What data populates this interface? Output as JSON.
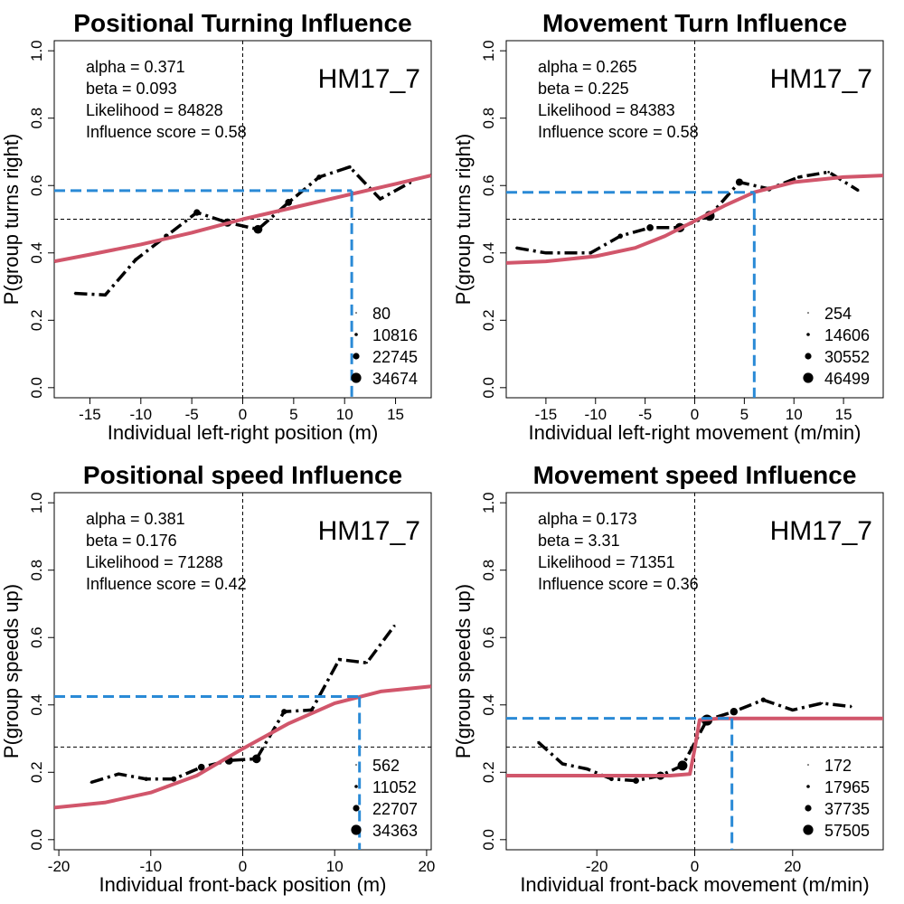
{
  "chart_data": [
    {
      "type": "line",
      "title": "Positional Turning Influence",
      "xlabel": "Individual left-right position (m)",
      "ylabel": "P(group turns right)",
      "xlim": [
        -18.5,
        18.5
      ],
      "ylim": [
        -0.03,
        1.03
      ],
      "xticks": [
        -15,
        -10,
        -5,
        0,
        5,
        10,
        15
      ],
      "yticks": [
        0.0,
        0.2,
        0.4,
        0.6,
        0.8,
        1.0
      ],
      "sample_id": "HM17_7",
      "stats": [
        "alpha = 0.371",
        "beta = 0.093",
        "Likelihood = 84828",
        "Influence score =  0.58"
      ],
      "reference_line": {
        "x": 0,
        "y": 0.5
      },
      "influence_marker": {
        "x": 10.7,
        "y": 0.585
      },
      "size_legend": [
        "80",
        "10816",
        "22745",
        "34674"
      ],
      "observed": {
        "name": "observed",
        "x": [
          -16.5,
          -13.5,
          -10.5,
          -7.5,
          -4.5,
          -1.5,
          1.5,
          4.5,
          7.5,
          10.5,
          13.5,
          16.5
        ],
        "y": [
          0.28,
          0.275,
          0.38,
          0.45,
          0.52,
          0.49,
          0.47,
          0.55,
          0.625,
          0.655,
          0.56,
          0.61
        ],
        "counts": [
          80,
          500,
          3000,
          9000,
          18000,
          30000,
          34674,
          20000,
          9000,
          3000,
          600,
          100
        ]
      },
      "fitted": {
        "name": "fitted",
        "x": [
          -18.5,
          -15,
          -10,
          -5,
          0,
          5,
          10,
          15,
          18.5
        ],
        "y": [
          0.375,
          0.395,
          0.425,
          0.46,
          0.5,
          0.535,
          0.57,
          0.605,
          0.63
        ]
      }
    },
    {
      "type": "line",
      "title": "Movement Turn Influence",
      "xlabel": "Individual left-right movement (m/min)",
      "ylabel": "P(group turns right)",
      "xlim": [
        -19,
        19
      ],
      "ylim": [
        -0.03,
        1.03
      ],
      "xticks": [
        -15,
        -10,
        -5,
        0,
        5,
        10,
        15
      ],
      "yticks": [
        0.0,
        0.2,
        0.4,
        0.6,
        0.8,
        1.0
      ],
      "sample_id": "HM17_7",
      "stats": [
        "alpha = 0.265",
        "beta = 0.225",
        "Likelihood = 84383",
        "Influence score =  0.58"
      ],
      "reference_line": {
        "x": 0,
        "y": 0.5
      },
      "influence_marker": {
        "x": 6,
        "y": 0.58
      },
      "size_legend": [
        "254",
        "14606",
        "30552",
        "46499"
      ],
      "observed": {
        "name": "observed",
        "x": [
          -18,
          -15,
          -10.5,
          -7.5,
          -4.5,
          -1.5,
          1.5,
          4.5,
          7.5,
          10.5,
          13.5,
          16.5
        ],
        "y": [
          0.415,
          0.4,
          0.4,
          0.45,
          0.475,
          0.475,
          0.51,
          0.61,
          0.59,
          0.625,
          0.64,
          0.585
        ],
        "counts": [
          254,
          800,
          3000,
          9000,
          20000,
          40000,
          46499,
          22000,
          9000,
          3000,
          900,
          300
        ]
      },
      "fitted": {
        "name": "fitted",
        "x": [
          -19,
          -15,
          -10,
          -6,
          -3,
          0,
          3,
          6,
          10,
          15,
          19
        ],
        "y": [
          0.37,
          0.375,
          0.39,
          0.415,
          0.45,
          0.495,
          0.54,
          0.58,
          0.61,
          0.625,
          0.63
        ]
      }
    },
    {
      "type": "line",
      "title": "Positional speed Influence",
      "xlabel": "Individual front-back position (m)",
      "ylabel": "P(group speeds up)",
      "xlim": [
        -20.5,
        20.5
      ],
      "ylim": [
        -0.03,
        1.03
      ],
      "xticks": [
        -20,
        -10,
        0,
        10,
        20
      ],
      "yticks": [
        0.0,
        0.2,
        0.4,
        0.6,
        0.8,
        1.0
      ],
      "sample_id": "HM17_7",
      "stats": [
        "alpha = 0.381",
        "beta = 0.176",
        "Likelihood = 71288",
        "Influence score =  0.42"
      ],
      "reference_line": {
        "x": 0,
        "y": 0.275
      },
      "influence_marker": {
        "x": 12.7,
        "y": 0.425
      },
      "size_legend": [
        "562",
        "11052",
        "22707",
        "34363"
      ],
      "observed": {
        "name": "observed",
        "x": [
          -16.5,
          -13.5,
          -10.5,
          -7.5,
          -4.5,
          -1.5,
          1.5,
          4.5,
          7.5,
          10.5,
          13.5,
          16.5
        ],
        "y": [
          0.17,
          0.195,
          0.18,
          0.18,
          0.215,
          0.235,
          0.24,
          0.38,
          0.385,
          0.535,
          0.525,
          0.635
        ],
        "counts": [
          562,
          1500,
          5000,
          11052,
          20000,
          30000,
          34363,
          12000,
          5000,
          1500,
          600,
          562
        ]
      },
      "fitted": {
        "name": "fitted",
        "x": [
          -20.5,
          -15,
          -10,
          -5,
          0,
          5,
          10,
          15,
          20.5
        ],
        "y": [
          0.095,
          0.11,
          0.14,
          0.19,
          0.27,
          0.345,
          0.405,
          0.44,
          0.455
        ]
      }
    },
    {
      "type": "line",
      "title": "Movement speed Influence",
      "xlabel": "Individual front-back movement (m/min)",
      "ylabel": "P(group speeds up)",
      "xlim": [
        -38.5,
        38.5
      ],
      "ylim": [
        -0.03,
        1.03
      ],
      "xticks": [
        -20,
        0,
        20
      ],
      "yticks": [
        0.0,
        0.2,
        0.4,
        0.6,
        0.8,
        1.0
      ],
      "sample_id": "HM17_7",
      "stats": [
        "alpha = 0.173",
        "beta = 3.31",
        "Likelihood = 71351",
        "Influence score =  0.36"
      ],
      "reference_line": {
        "x": 0,
        "y": 0.275
      },
      "influence_marker": {
        "x": 7.6,
        "y": 0.36
      },
      "size_legend": [
        "172",
        "17965",
        "37735",
        "57505"
      ],
      "observed": {
        "name": "observed",
        "x": [
          -32,
          -27,
          -22,
          -17,
          -12,
          -7,
          -2.5,
          2.5,
          8,
          14,
          20,
          26,
          32
        ],
        "y": [
          0.29,
          0.225,
          0.21,
          0.18,
          0.175,
          0.19,
          0.22,
          0.355,
          0.38,
          0.415,
          0.385,
          0.405,
          0.395
        ],
        "counts": [
          172,
          500,
          2000,
          6000,
          15000,
          30000,
          45000,
          57505,
          25000,
          8000,
          2000,
          600,
          172
        ]
      },
      "fitted": {
        "name": "fitted",
        "x": [
          -38.5,
          -5,
          -1,
          0,
          1,
          5,
          38.5
        ],
        "y": [
          0.19,
          0.19,
          0.195,
          0.27,
          0.355,
          0.36,
          0.36
        ]
      }
    }
  ]
}
